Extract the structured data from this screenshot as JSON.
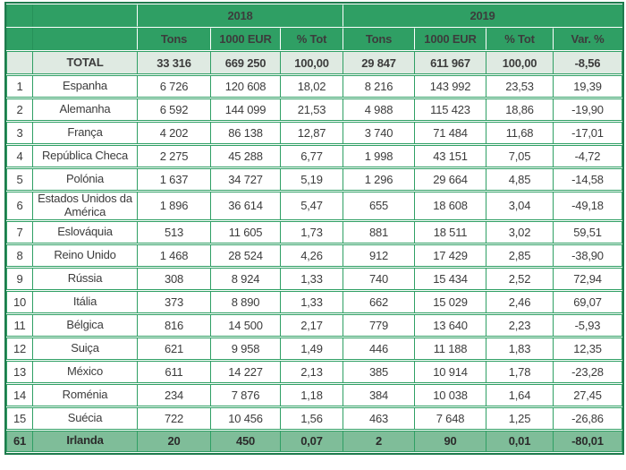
{
  "colors": {
    "header_green": "#2F9F64",
    "grid_green": "#2F9F64",
    "outer_border": "#1F7B4D",
    "total_row_bg": "#DFEAE2",
    "footer_row_bg": "#7FBD99",
    "header_text": "#FFFFFF",
    "body_text": "#3C3C3C"
  },
  "chart_data": {
    "type": "table",
    "year_groups": [
      {
        "label": "2018",
        "span": 3
      },
      {
        "label": "2019",
        "span": 4
      }
    ],
    "sub_headers": [
      "Tons",
      "1000 EUR",
      "% Tot",
      "Tons",
      "1000 EUR",
      "% Tot",
      "Var. %"
    ],
    "total_row": {
      "rank": "",
      "name": "TOTAL",
      "values": [
        "33 316",
        "669 250",
        "100,00",
        "29 847",
        "611 967",
        "100,00",
        "-8,56"
      ]
    },
    "rows": [
      {
        "rank": "1",
        "name": "Espanha",
        "values": [
          "6 726",
          "120 608",
          "18,02",
          "8 216",
          "143 992",
          "23,53",
          "19,39"
        ]
      },
      {
        "rank": "2",
        "name": "Alemanha",
        "values": [
          "6 592",
          "144 099",
          "21,53",
          "4 988",
          "115 423",
          "18,86",
          "-19,90"
        ]
      },
      {
        "rank": "3",
        "name": "França",
        "values": [
          "4 202",
          "86 138",
          "12,87",
          "3 740",
          "71 484",
          "11,68",
          "-17,01"
        ]
      },
      {
        "rank": "4",
        "name": "República Checa",
        "values": [
          "2 275",
          "45 288",
          "6,77",
          "1 998",
          "43 151",
          "7,05",
          "-4,72"
        ]
      },
      {
        "rank": "5",
        "name": "Polónia",
        "values": [
          "1 637",
          "34 727",
          "5,19",
          "1 296",
          "29 664",
          "4,85",
          "-14,58"
        ]
      },
      {
        "rank": "6",
        "name": "Estados Unidos da América",
        "values": [
          "1 896",
          "36 614",
          "5,47",
          "655",
          "18 608",
          "3,04",
          "-49,18"
        ]
      },
      {
        "rank": "7",
        "name": "Eslováquia",
        "values": [
          "513",
          "11 605",
          "1,73",
          "881",
          "18 511",
          "3,02",
          "59,51"
        ]
      },
      {
        "rank": "8",
        "name": "Reino Unido",
        "values": [
          "1 468",
          "28 524",
          "4,26",
          "912",
          "17 429",
          "2,85",
          "-38,90"
        ]
      },
      {
        "rank": "9",
        "name": "Rússia",
        "values": [
          "308",
          "8 924",
          "1,33",
          "740",
          "15 434",
          "2,52",
          "72,94"
        ]
      },
      {
        "rank": "10",
        "name": "Itália",
        "values": [
          "373",
          "8 890",
          "1,33",
          "662",
          "15 029",
          "2,46",
          "69,07"
        ]
      },
      {
        "rank": "11",
        "name": "Bélgica",
        "values": [
          "816",
          "14 500",
          "2,17",
          "779",
          "13 640",
          "2,23",
          "-5,93"
        ]
      },
      {
        "rank": "12",
        "name": "Suiça",
        "values": [
          "621",
          "9 958",
          "1,49",
          "446",
          "11 188",
          "1,83",
          "12,35"
        ]
      },
      {
        "rank": "13",
        "name": "México",
        "values": [
          "611",
          "14 227",
          "2,13",
          "385",
          "10 914",
          "1,78",
          "-23,28"
        ]
      },
      {
        "rank": "14",
        "name": "Roménia",
        "values": [
          "234",
          "7 876",
          "1,18",
          "384",
          "10 038",
          "1,64",
          "27,45"
        ]
      },
      {
        "rank": "15",
        "name": "Suécia",
        "values": [
          "722",
          "10 456",
          "1,56",
          "463",
          "7 648",
          "1,25",
          "-26,86"
        ]
      }
    ],
    "footer_row": {
      "rank": "61",
      "name": "Irlanda",
      "values": [
        "20",
        "450",
        "0,07",
        "2",
        "90",
        "0,01",
        "-80,01"
      ]
    }
  }
}
